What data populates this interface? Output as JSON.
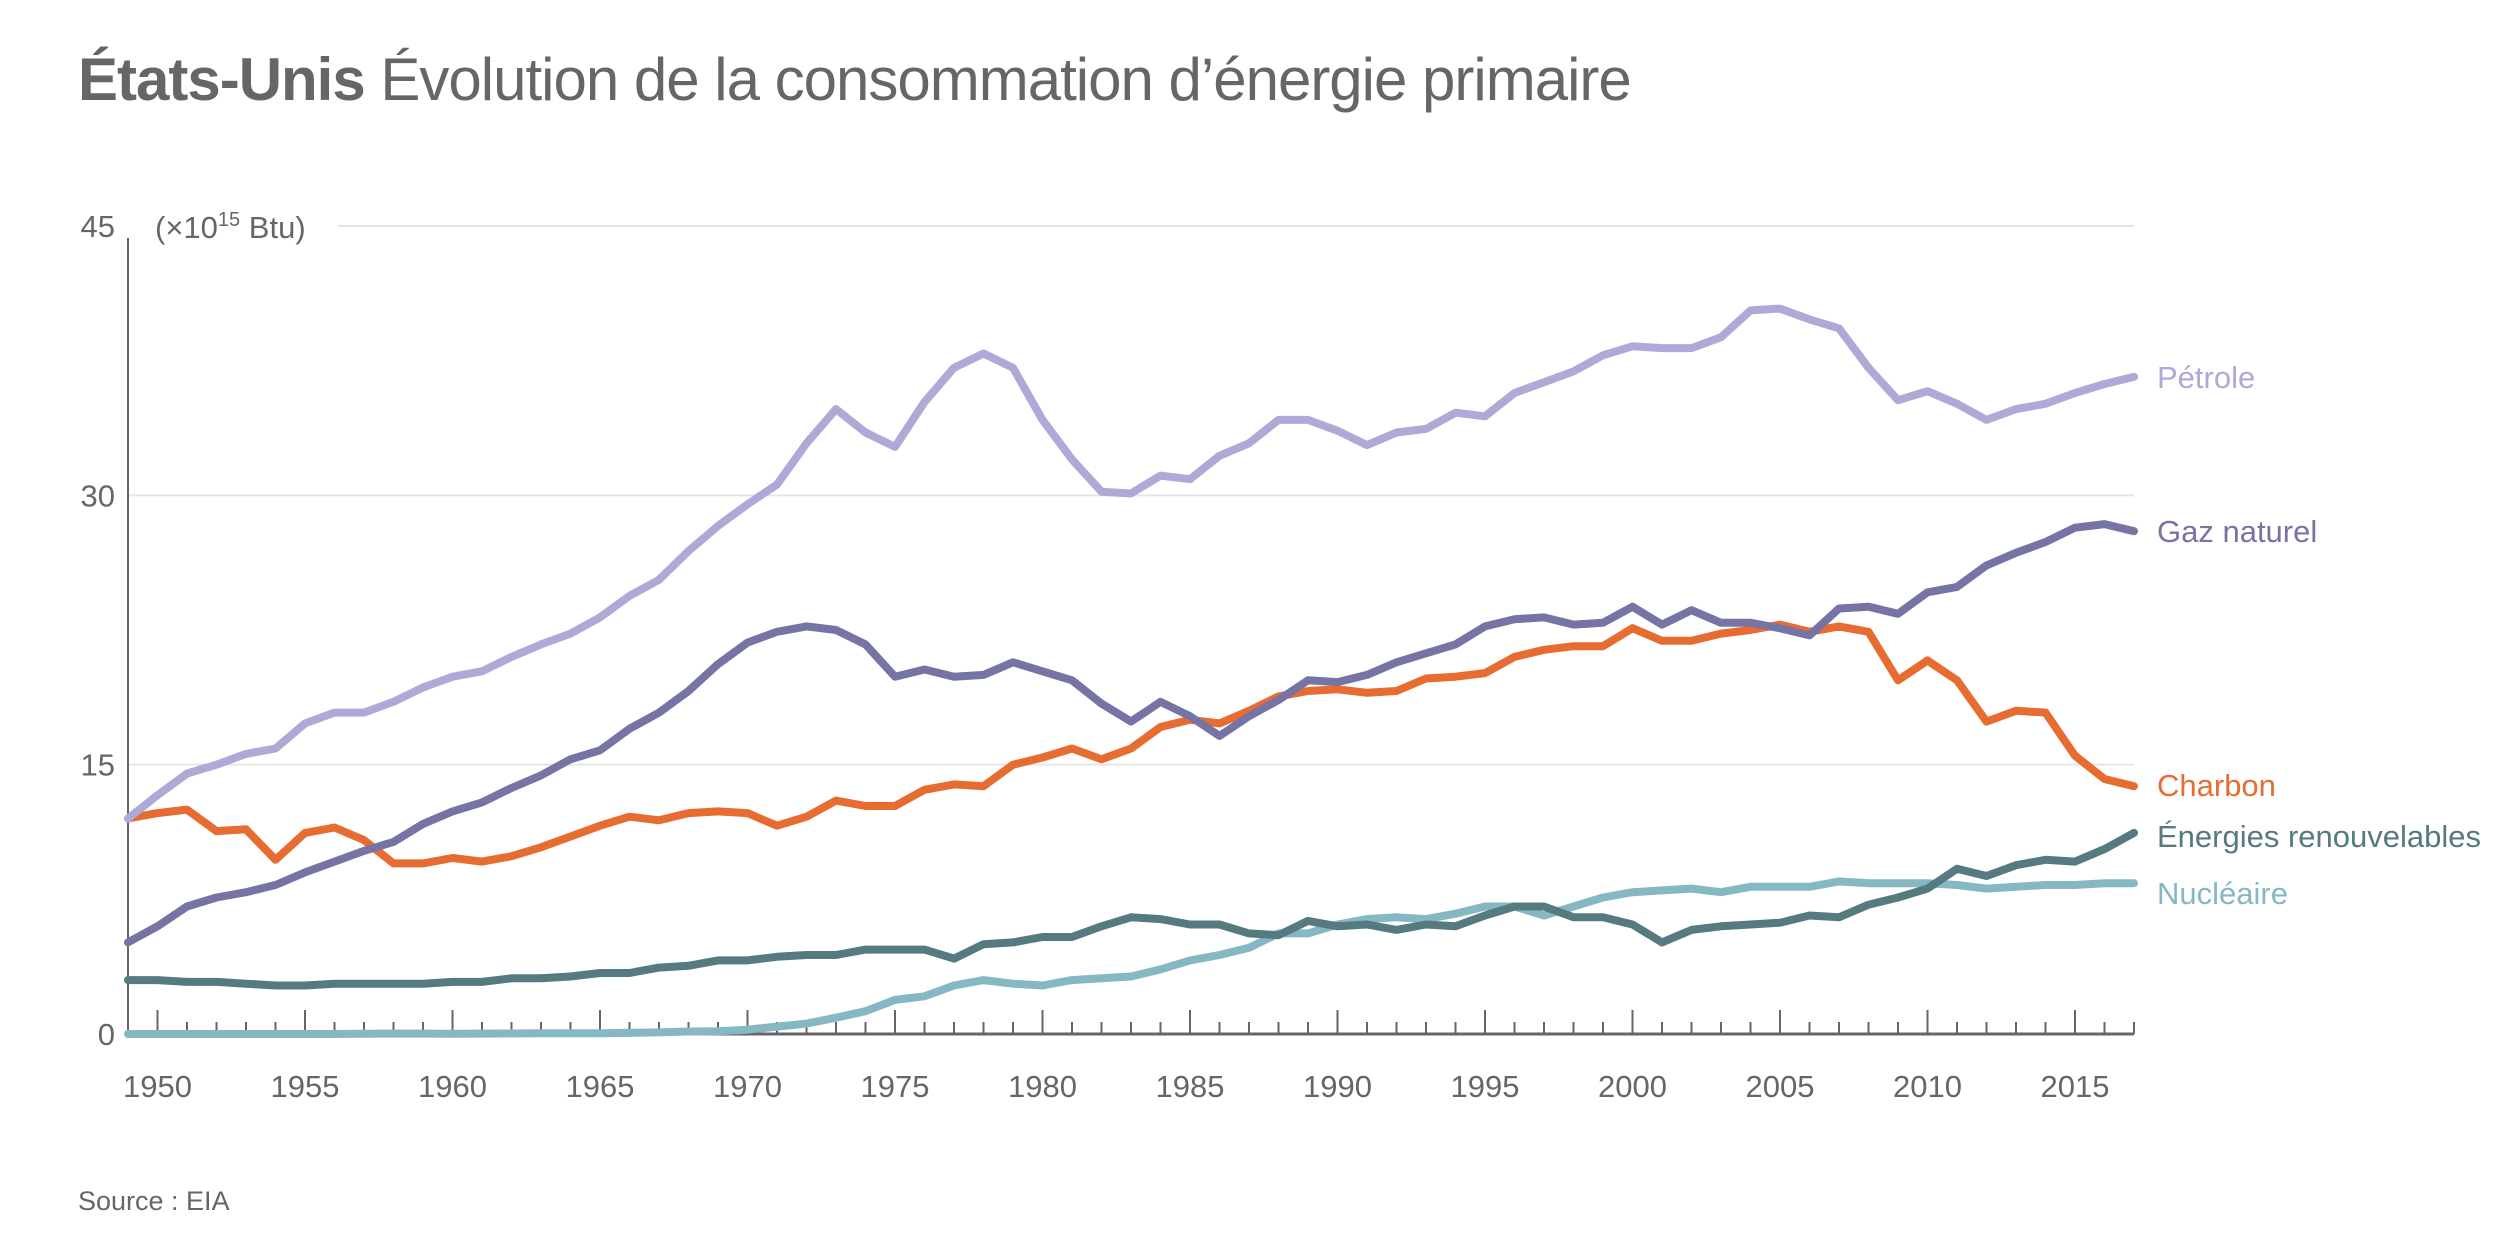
{
  "header": {
    "title_bold": "États-Unis",
    "title_rest": "Évolution de la consommation d’énergie primaire"
  },
  "footer": {
    "source": "Source : EIA"
  },
  "chart_data": {
    "type": "line",
    "title": "États-Unis Évolution de la consommation d’énergie primaire",
    "unit_label": "(×10",
    "unit_exponent": "15",
    "unit_suffix": " Btu)",
    "xlabel": "",
    "ylabel": "×10^15 Btu",
    "xlim": [
      1949,
      2017
    ],
    "ylim": [
      0,
      45
    ],
    "yticks": [
      0,
      15,
      30,
      45
    ],
    "xticks": [
      1950,
      1955,
      1960,
      1965,
      1970,
      1975,
      1980,
      1985,
      1990,
      1995,
      2000,
      2005,
      2010,
      2015
    ],
    "grid": "horizontal",
    "legend": "inline-right",
    "x": [
      1949,
      1950,
      1951,
      1952,
      1953,
      1954,
      1955,
      1956,
      1957,
      1958,
      1959,
      1960,
      1961,
      1962,
      1963,
      1964,
      1965,
      1966,
      1967,
      1968,
      1969,
      1970,
      1971,
      1972,
      1973,
      1974,
      1975,
      1976,
      1977,
      1978,
      1979,
      1980,
      1981,
      1982,
      1983,
      1984,
      1985,
      1986,
      1987,
      1988,
      1989,
      1990,
      1991,
      1992,
      1993,
      1994,
      1995,
      1996,
      1997,
      1998,
      1999,
      2000,
      2001,
      2002,
      2003,
      2004,
      2005,
      2006,
      2007,
      2008,
      2009,
      2010,
      2011,
      2012,
      2013,
      2014,
      2015,
      2016,
      2017
    ],
    "series": [
      {
        "name": "Pétrole",
        "color": "#aeaad8",
        "values": [
          12.0,
          13.3,
          14.5,
          15.0,
          15.6,
          15.9,
          17.3,
          17.9,
          17.9,
          18.5,
          19.3,
          19.9,
          20.2,
          21.0,
          21.7,
          22.3,
          23.2,
          24.4,
          25.3,
          26.9,
          28.3,
          29.5,
          30.6,
          32.9,
          34.8,
          33.5,
          32.7,
          35.2,
          37.1,
          37.9,
          37.1,
          34.2,
          32.0,
          30.2,
          30.1,
          31.1,
          30.9,
          32.2,
          32.9,
          34.2,
          34.2,
          33.6,
          32.8,
          33.5,
          33.7,
          34.6,
          34.4,
          35.7,
          36.3,
          36.9,
          37.8,
          38.3,
          38.2,
          38.2,
          38.8,
          40.3,
          40.4,
          39.8,
          39.3,
          37.1,
          35.3,
          35.8,
          35.1,
          34.2,
          34.8,
          35.1,
          35.7,
          36.2,
          36.6
        ]
      },
      {
        "name": "Gaz naturel",
        "color": "#7674a4",
        "values": [
          5.1,
          6.0,
          7.1,
          7.6,
          7.9,
          8.3,
          9.0,
          9.6,
          10.2,
          10.7,
          11.7,
          12.4,
          12.9,
          13.7,
          14.4,
          15.3,
          15.8,
          17.0,
          17.9,
          19.1,
          20.6,
          21.8,
          22.4,
          22.7,
          22.5,
          21.7,
          19.9,
          20.3,
          19.9,
          20.0,
          20.7,
          20.2,
          19.7,
          18.4,
          17.4,
          18.5,
          17.7,
          16.6,
          17.7,
          18.6,
          19.7,
          19.6,
          20.0,
          20.7,
          21.2,
          21.7,
          22.7,
          23.1,
          23.2,
          22.8,
          22.9,
          23.8,
          22.8,
          23.6,
          22.9,
          22.9,
          22.6,
          22.2,
          23.7,
          23.8,
          23.4,
          24.6,
          24.9,
          26.1,
          26.8,
          27.4,
          28.2,
          28.4,
          28.0
        ]
      },
      {
        "name": "Charbon",
        "color": "#e66c32",
        "values": [
          12.0,
          12.3,
          12.5,
          11.3,
          11.4,
          9.7,
          11.2,
          11.5,
          10.8,
          9.5,
          9.5,
          9.8,
          9.6,
          9.9,
          10.4,
          11.0,
          11.6,
          12.1,
          11.9,
          12.3,
          12.4,
          12.3,
          11.6,
          12.1,
          13.0,
          12.7,
          12.7,
          13.6,
          13.9,
          13.8,
          15.0,
          15.4,
          15.9,
          15.3,
          15.9,
          17.1,
          17.5,
          17.3,
          18.0,
          18.8,
          19.1,
          19.2,
          19.0,
          19.1,
          19.8,
          19.9,
          20.1,
          21.0,
          21.4,
          21.6,
          21.6,
          22.6,
          21.9,
          21.9,
          22.3,
          22.5,
          22.8,
          22.4,
          22.7,
          22.4,
          19.7,
          20.8,
          19.7,
          17.4,
          18.0,
          17.9,
          15.5,
          14.2,
          13.8
        ]
      },
      {
        "name": "Énergies renouvelables",
        "color": "#557a80",
        "values": [
          3.0,
          3.0,
          2.9,
          2.9,
          2.8,
          2.7,
          2.7,
          2.8,
          2.8,
          2.8,
          2.8,
          2.9,
          2.9,
          3.1,
          3.1,
          3.2,
          3.4,
          3.4,
          3.7,
          3.8,
          4.1,
          4.1,
          4.3,
          4.4,
          4.4,
          4.7,
          4.7,
          4.7,
          4.2,
          5.0,
          5.1,
          5.4,
          5.4,
          6.0,
          6.5,
          6.4,
          6.1,
          6.1,
          5.6,
          5.5,
          6.3,
          6.0,
          6.1,
          5.8,
          6.1,
          6.0,
          6.6,
          7.1,
          7.1,
          6.5,
          6.5,
          6.1,
          5.1,
          5.8,
          6.0,
          6.1,
          6.2,
          6.6,
          6.5,
          7.2,
          7.6,
          8.1,
          9.2,
          8.8,
          9.4,
          9.7,
          9.6,
          10.3,
          11.2
        ]
      },
      {
        "name": "Nucléaire",
        "color": "#86b8c4",
        "values": [
          0,
          0,
          0,
          0,
          0,
          0,
          0,
          0,
          0.01,
          0.02,
          0.02,
          0.01,
          0.02,
          0.03,
          0.04,
          0.04,
          0.04,
          0.06,
          0.09,
          0.14,
          0.15,
          0.24,
          0.41,
          0.58,
          0.91,
          1.27,
          1.9,
          2.1,
          2.7,
          3.0,
          2.8,
          2.7,
          3.0,
          3.1,
          3.2,
          3.6,
          4.1,
          4.4,
          4.8,
          5.6,
          5.6,
          6.1,
          6.4,
          6.5,
          6.4,
          6.7,
          7.1,
          7.1,
          6.6,
          7.1,
          7.6,
          7.9,
          8.0,
          8.1,
          7.9,
          8.2,
          8.2,
          8.2,
          8.5,
          8.4,
          8.4,
          8.4,
          8.3,
          8.1,
          8.2,
          8.3,
          8.3,
          8.4,
          8.4
        ]
      }
    ]
  }
}
